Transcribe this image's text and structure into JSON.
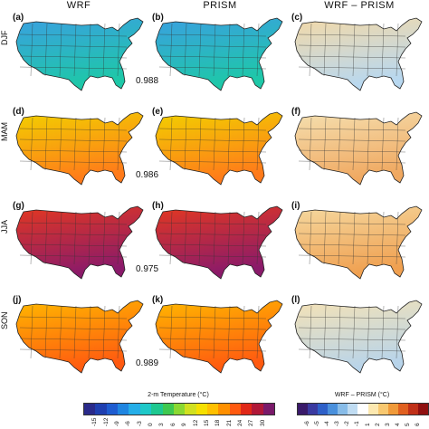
{
  "columns": [
    "WRF",
    "PRISM",
    "WRF – PRISM"
  ],
  "rows": [
    {
      "season": "DJF",
      "labels": [
        "(a)",
        "(b)",
        "(c)"
      ],
      "corr": "0.988",
      "fill": [
        "#3aa0e0",
        "#3aa0e0",
        "#f3d9a8"
      ],
      "accent": [
        "#1ec8a8",
        "#1ec8a8",
        "#b8d8f0"
      ]
    },
    {
      "season": "MAM",
      "labels": [
        "(d)",
        "(e)",
        "(f)"
      ],
      "corr": "0.986",
      "fill": [
        "#f2d000",
        "#f2d000",
        "#f5e0b0"
      ],
      "accent": [
        "#ff7a1a",
        "#ff7a1a",
        "#f0a860"
      ]
    },
    {
      "season": "JJA",
      "labels": [
        "(g)",
        "(h)",
        "(i)"
      ],
      "corr": "0.975",
      "fill": [
        "#e43820",
        "#e43820",
        "#f5d9a0"
      ],
      "accent": [
        "#8a1a6a",
        "#8a1a6a",
        "#f0a050"
      ]
    },
    {
      "season": "SON",
      "labels": [
        "(j)",
        "(k)",
        "(l)"
      ],
      "corr": "0.989",
      "fill": [
        "#ffb800",
        "#ffb800",
        "#f5e2b5"
      ],
      "accent": [
        "#ff5a10",
        "#ff5a10",
        "#b8d4ea"
      ]
    }
  ],
  "colorbar_temp": {
    "title": "2-m Temperature (°C)",
    "ticks": [
      "-15",
      "-12",
      "-9",
      "-6",
      "-3",
      "0",
      "3",
      "6",
      "9",
      "12",
      "15",
      "18",
      "21",
      "24",
      "27",
      "30"
    ],
    "colors": [
      "#2a2a8a",
      "#1f3fb0",
      "#1e5cd0",
      "#1f85e0",
      "#25aee8",
      "#1ec8c8",
      "#1ec890",
      "#3ec850",
      "#8ad832",
      "#d0e020",
      "#f5e000",
      "#ffc000",
      "#ff9000",
      "#ff5a10",
      "#e02818",
      "#b01838",
      "#7a1a6a"
    ]
  },
  "colorbar_diff": {
    "title": "WRF – PRISM (°C)",
    "ticks": [
      "-6",
      "-5",
      "-4",
      "-3",
      "-2",
      "-1",
      "1",
      "2",
      "3",
      "4",
      "5",
      "6"
    ],
    "colors": [
      "#3a1a6a",
      "#3a3aa0",
      "#2e60c8",
      "#4a90dc",
      "#88bce8",
      "#c0dcf2",
      "#ffffff",
      "#fce8b0",
      "#f8c870",
      "#f09a3a",
      "#e06020",
      "#c03018",
      "#901010"
    ]
  }
}
